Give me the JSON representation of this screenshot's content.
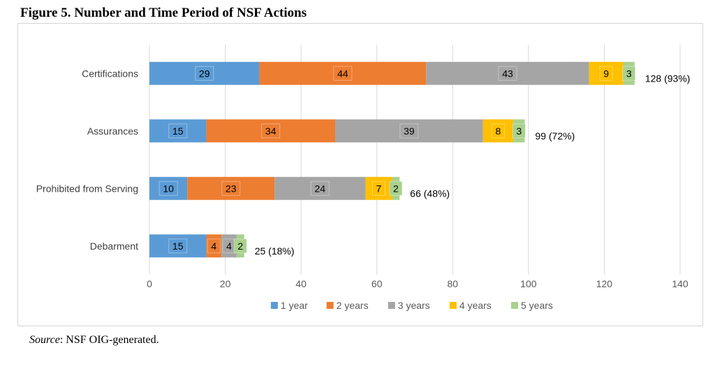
{
  "figure": {
    "title": "Figure 5. Number and Time Period of NSF Actions",
    "source_label": "Source",
    "source_text": ": NSF OIG-generated."
  },
  "chart_data": {
    "type": "bar",
    "orientation": "horizontal",
    "stacked": true,
    "categories": [
      "Certifications",
      "Assurances",
      "Prohibited from Serving",
      "Debarment"
    ],
    "series": [
      {
        "name": "1 year",
        "color": "#5b9bd5",
        "values": [
          29,
          15,
          10,
          15
        ]
      },
      {
        "name": "2 years",
        "color": "#ed7d31",
        "values": [
          44,
          34,
          23,
          4
        ]
      },
      {
        "name": "3 years",
        "color": "#a5a5a5",
        "values": [
          43,
          39,
          24,
          4
        ]
      },
      {
        "name": "4 years",
        "color": "#ffc000",
        "values": [
          9,
          8,
          7,
          0
        ]
      },
      {
        "name": "5 years",
        "color": "#a9d18e",
        "values": [
          3,
          3,
          2,
          2
        ]
      }
    ],
    "totals": [
      "128 (93%)",
      "99 (72%)",
      "66 (48%)",
      "25 (18%)"
    ],
    "x_ticks": [
      "0",
      "20",
      "40",
      "60",
      "80",
      "100",
      "120",
      "140"
    ],
    "xlim": [
      0,
      140
    ],
    "grid": true,
    "legend_position": "bottom"
  }
}
